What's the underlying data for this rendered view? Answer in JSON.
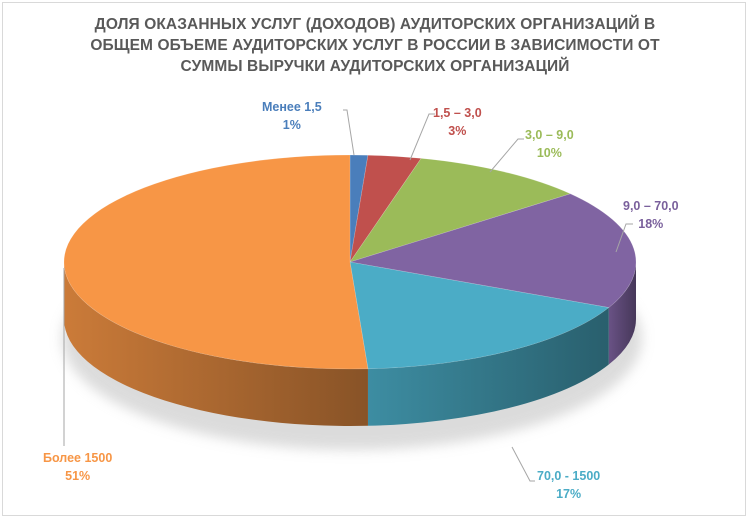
{
  "chart_data": {
    "type": "pie",
    "style": "3d-exploded-none",
    "title": "ДОЛЯ ОКАЗАННЫХ УСЛУГ (ДОХОДОВ) АУДИТОРСКИХ ОРГАНИЗАЦИЙ В ОБЩЕМ ОБЪЕМЕ АУДИТОРСКИХ УСЛУГ В РОССИИ В ЗАВИСИМОСТИ ОТ СУММЫ ВЫРУЧКИ АУДИТОРСКИХ ОРГАНИЗАЦИЙ",
    "title_lines": [
      "ДОЛЯ ОКАЗАННЫХ УСЛУГ (ДОХОДОВ) АУДИТОРСКИХ ОРГАНИЗАЦИЙ В",
      "ОБЩЕМ ОБЪЕМЕ АУДИТОРСКИХ УСЛУГ В РОССИИ В ЗАВИСИМОСТИ ОТ",
      "СУММЫ ВЫРУЧКИ АУДИТОРСКИХ ОРГАНИЗАЦИЙ"
    ],
    "categories": [
      "Менее 1,5",
      "1,5 – 3,0",
      "3,0 – 9,0",
      "9,0 – 70,0",
      "70,0 - 1500",
      "Более 1500"
    ],
    "values": [
      1,
      3,
      10,
      18,
      17,
      51
    ],
    "value_labels": [
      "1%",
      "3%",
      "10%",
      "18%",
      "17%",
      "51%"
    ],
    "colors": [
      "#4a7ebb",
      "#c0504d",
      "#9bbb59",
      "#8064a2",
      "#4bacc6",
      "#f79646"
    ],
    "legend": "none",
    "data_labels": "category name and percent, with leader lines"
  }
}
